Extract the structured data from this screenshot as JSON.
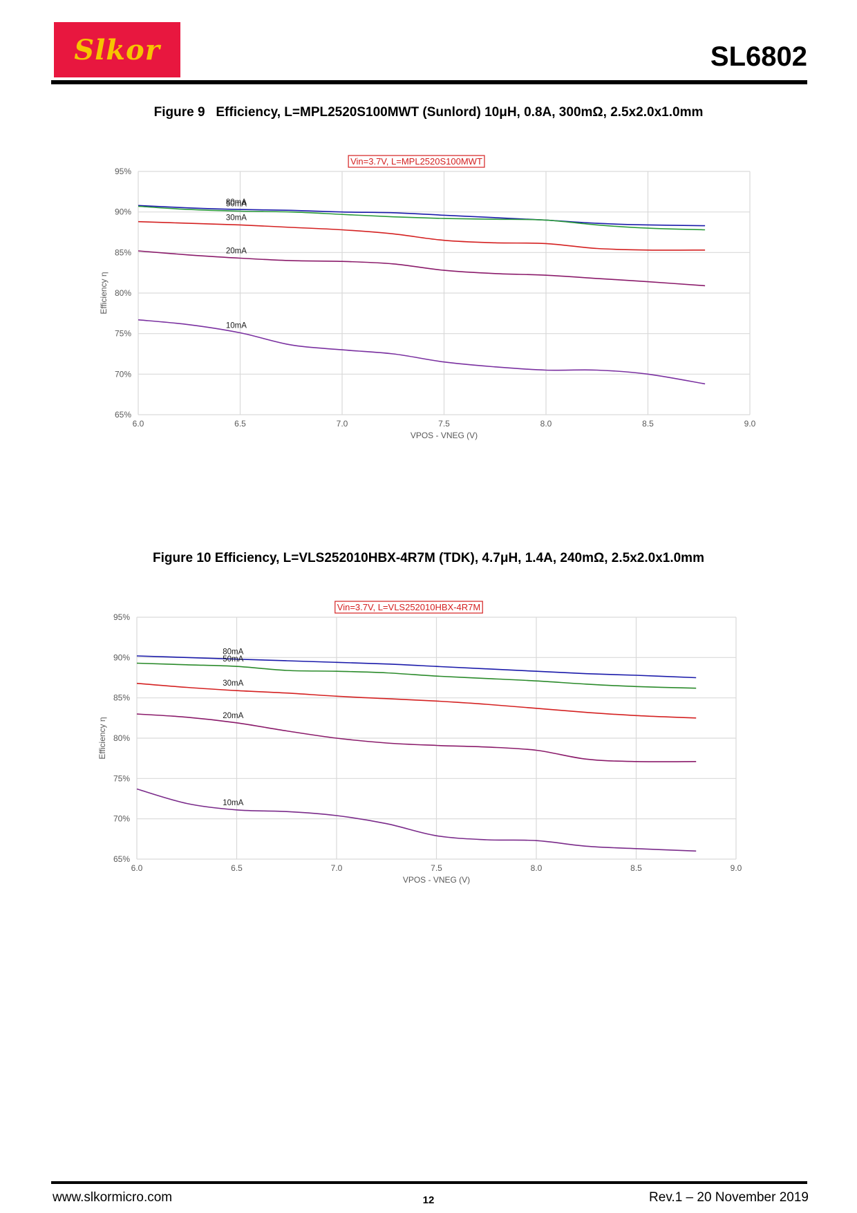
{
  "header": {
    "logo_text": "Slkor",
    "part_number": "SL6802"
  },
  "figures": [
    {
      "caption": "Figure 9   Efficiency, L=MPL2520S100MWT (Sunlord) 10μH, 0.8A, 300mΩ, 2.5x2.0x1.0mm"
    },
    {
      "caption": "Figure 10 Efficiency, L=VLS252010HBX-4R7M (TDK), 4.7μH, 1.4A, 240mΩ, 2.5x2.0x1.0mm"
    }
  ],
  "chart_data": [
    {
      "type": "line",
      "title": "Vin=3.7V, L=MPL2520S100MWT",
      "xlabel": "VPOS - VNEG (V)",
      "ylabel": "Efficiency  η",
      "xlim": [
        6.0,
        9.0
      ],
      "ylim": [
        65,
        95
      ],
      "x_ticks": [
        "6.0",
        "6.5",
        "7.0",
        "7.5",
        "8.0",
        "8.5",
        "9.0"
      ],
      "y_ticks": [
        "65%",
        "70%",
        "75%",
        "80%",
        "85%",
        "90%",
        "95%"
      ],
      "grid": true,
      "x": [
        6.0,
        6.25,
        6.5,
        6.75,
        7.0,
        7.25,
        7.5,
        7.75,
        8.0,
        8.25,
        8.5,
        8.78
      ],
      "series": [
        {
          "name": "80mA",
          "color": "#1a1aaa",
          "values": [
            90.8,
            90.5,
            90.3,
            90.2,
            90.0,
            89.9,
            89.6,
            89.3,
            89.0,
            88.6,
            88.4,
            88.3
          ]
        },
        {
          "name": "50mA",
          "color": "#2a9a3a",
          "values": [
            90.7,
            90.3,
            90.1,
            90.0,
            89.7,
            89.4,
            89.2,
            89.1,
            89.0,
            88.4,
            88.0,
            87.8
          ]
        },
        {
          "name": "30mA",
          "color": "#d42020",
          "values": [
            88.8,
            88.6,
            88.4,
            88.1,
            87.8,
            87.3,
            86.5,
            86.2,
            86.1,
            85.5,
            85.3,
            85.3
          ]
        },
        {
          "name": "20mA",
          "color": "#8a1a6a",
          "values": [
            85.2,
            84.7,
            84.3,
            84.0,
            83.9,
            83.6,
            82.8,
            82.4,
            82.2,
            81.8,
            81.4,
            80.9
          ]
        },
        {
          "name": "10mA",
          "color": "#7a30a0",
          "values": [
            76.7,
            76.1,
            75.1,
            73.6,
            73.0,
            72.5,
            71.5,
            70.9,
            70.5,
            70.5,
            70.0,
            68.8
          ]
        }
      ]
    },
    {
      "type": "line",
      "title": "Vin=3.7V, L=VLS252010HBX-4R7M",
      "xlabel": "VPOS - VNEG (V)",
      "ylabel": "Efficiency  η",
      "xlim": [
        6.0,
        9.0
      ],
      "ylim": [
        65,
        95
      ],
      "x_ticks": [
        "6.0",
        "6.5",
        "7.0",
        "7.5",
        "8.0",
        "8.5",
        "9.0"
      ],
      "y_ticks": [
        "65%",
        "70%",
        "75%",
        "80%",
        "85%",
        "90%",
        "95%"
      ],
      "grid": true,
      "x": [
        6.0,
        6.25,
        6.5,
        6.75,
        7.0,
        7.25,
        7.5,
        7.75,
        8.0,
        8.25,
        8.5,
        8.8
      ],
      "series": [
        {
          "name": "80mA",
          "color": "#1a1aaa",
          "values": [
            90.2,
            90.0,
            89.8,
            89.6,
            89.4,
            89.2,
            88.9,
            88.6,
            88.3,
            88.0,
            87.8,
            87.5
          ]
        },
        {
          "name": "50mA",
          "color": "#2a8a2a",
          "values": [
            89.3,
            89.1,
            88.9,
            88.4,
            88.3,
            88.1,
            87.7,
            87.4,
            87.1,
            86.7,
            86.4,
            86.2
          ]
        },
        {
          "name": "30mA",
          "color": "#d42020",
          "values": [
            86.8,
            86.3,
            85.9,
            85.6,
            85.2,
            84.9,
            84.6,
            84.2,
            83.7,
            83.2,
            82.8,
            82.5
          ]
        },
        {
          "name": "20mA",
          "color": "#8a1a6a",
          "values": [
            83.0,
            82.6,
            81.9,
            80.9,
            80.0,
            79.4,
            79.1,
            78.9,
            78.5,
            77.4,
            77.1,
            77.1
          ]
        },
        {
          "name": "10mA",
          "color": "#7a2a8a",
          "values": [
            73.7,
            71.9,
            71.1,
            70.9,
            70.4,
            69.4,
            67.9,
            67.4,
            67.3,
            66.6,
            66.3,
            66.0
          ]
        }
      ]
    }
  ],
  "footer": {
    "website": "www.slkormicro.com",
    "page_number": "12",
    "revision": "Rev.1 – 20 November 2019"
  }
}
